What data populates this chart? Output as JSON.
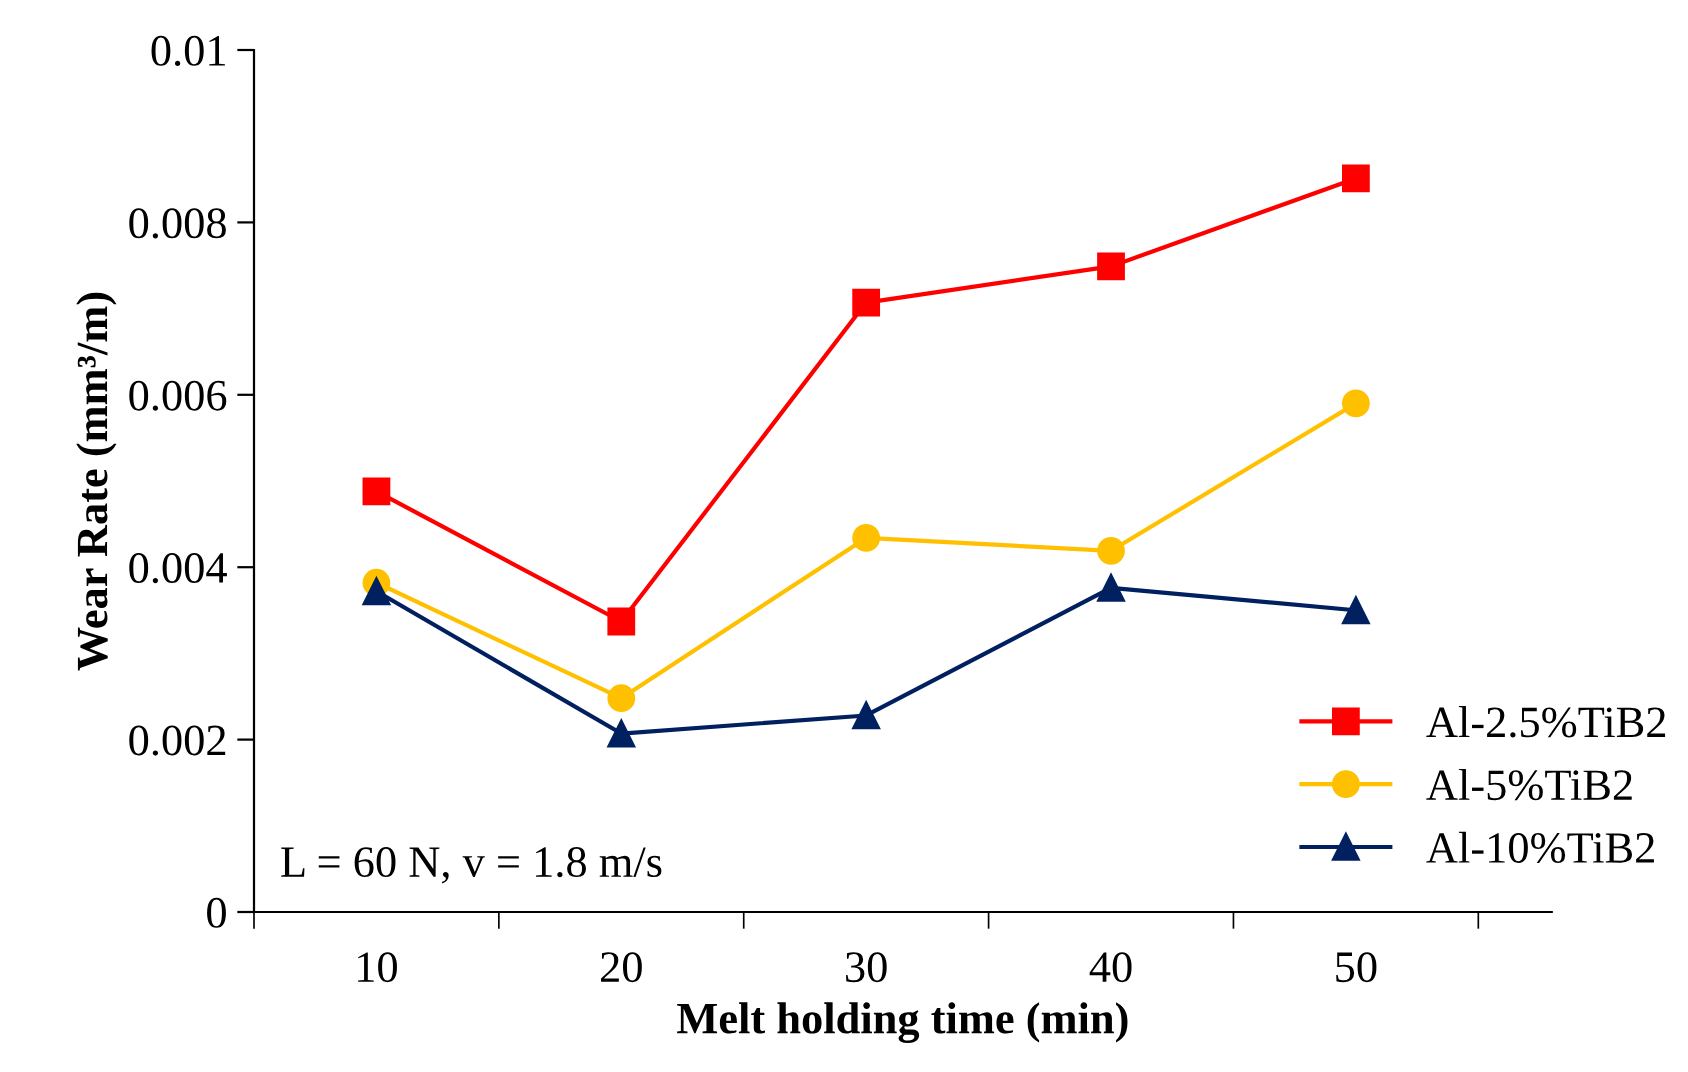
{
  "chart_data": {
    "type": "line",
    "xlabel": "Melt holding time (min)",
    "ylabel": "Wear Rate (mm³/m)",
    "x": [
      10,
      20,
      30,
      40,
      50
    ],
    "series": [
      {
        "name": "Al-2.5%TiB2",
        "color": "#ff0000",
        "marker": "square",
        "values": [
          0.00488,
          0.00337,
          0.00707,
          0.00749,
          0.00851
        ]
      },
      {
        "name": "Al-5%TiB2",
        "color": "#ffc000",
        "marker": "circle",
        "values": [
          0.00382,
          0.00248,
          0.00434,
          0.00419,
          0.0059
        ]
      },
      {
        "name": "Al-10%TiB2",
        "color": "#002060",
        "marker": "triangle",
        "values": [
          0.00372,
          0.00207,
          0.00228,
          0.00376,
          0.0035
        ]
      }
    ],
    "xlim": [
      5,
      58
    ],
    "xticks": [
      {
        "value": 5,
        "label": null
      },
      10,
      {
        "value": 15,
        "label": null
      },
      20,
      {
        "value": 25,
        "label": null
      },
      30,
      {
        "value": 35,
        "label": null
      },
      40,
      {
        "value": 45,
        "label": null
      },
      50,
      {
        "value": 55,
        "label": null
      }
    ],
    "ylim": [
      0,
      0.01
    ],
    "yticks": [
      0,
      0.002,
      0.004,
      0.006,
      0.008,
      0.01
    ],
    "annotations": [
      "L = 60 N, v = 1.8 m/s"
    ],
    "legend": "bottom right",
    "grid": false,
    "line_style": "solid"
  }
}
